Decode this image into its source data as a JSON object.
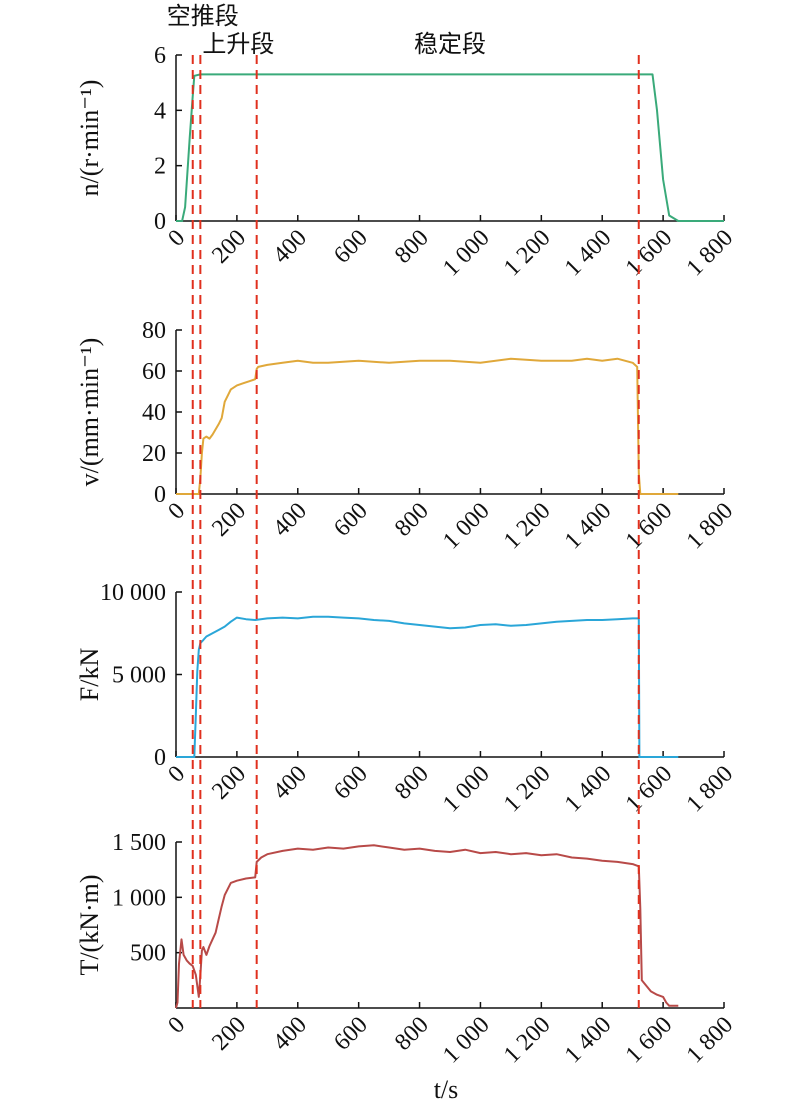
{
  "chart_data": [
    {
      "type": "line",
      "ylabel": "n/(r·min⁻¹)",
      "ylim": [
        0,
        6
      ],
      "yticks": [
        {
          "v": 0,
          "label": "0"
        },
        {
          "v": 2,
          "label": "2"
        },
        {
          "v": 4,
          "label": "4"
        },
        {
          "v": 6,
          "label": "6"
        }
      ],
      "color": "#3aaa7a",
      "series": [
        {
          "x": [
            0,
            10,
            20,
            30,
            45,
            55,
            60,
            80,
            200,
            400,
            800,
            1200,
            1500,
            1560,
            1565,
            1580,
            1600,
            1620,
            1650,
            1800
          ],
          "y": [
            0,
            0,
            0,
            0.5,
            3.0,
            4.5,
            5.25,
            5.3,
            5.3,
            5.3,
            5.3,
            5.3,
            5.3,
            5.3,
            5.3,
            4.0,
            1.5,
            0.2,
            0,
            0
          ]
        }
      ]
    },
    {
      "type": "line",
      "ylabel": "v/(mm·min⁻¹)",
      "ylim": [
        0,
        80
      ],
      "yticks": [
        {
          "v": 0,
          "label": "0"
        },
        {
          "v": 20,
          "label": "20"
        },
        {
          "v": 40,
          "label": "40"
        },
        {
          "v": 60,
          "label": "60"
        },
        {
          "v": 80,
          "label": "80"
        }
      ],
      "color": "#e0a83a",
      "series": [
        {
          "x": [
            0,
            60,
            75,
            80,
            85,
            90,
            100,
            110,
            120,
            140,
            150,
            160,
            170,
            180,
            200,
            220,
            240,
            260,
            265,
            270,
            300,
            350,
            400,
            450,
            500,
            600,
            700,
            800,
            900,
            1000,
            1100,
            1200,
            1300,
            1350,
            1400,
            1450,
            1500,
            1515,
            1520,
            1525,
            1650
          ],
          "y": [
            0,
            0,
            0,
            8,
            20,
            27,
            28,
            27,
            29,
            34,
            37,
            45,
            48,
            51,
            53,
            54,
            55,
            56,
            61,
            62,
            63,
            64,
            65,
            64,
            64,
            65,
            64,
            65,
            65,
            64,
            66,
            65,
            65,
            66,
            65,
            66,
            64,
            62,
            10,
            0,
            0
          ]
        }
      ]
    },
    {
      "type": "line",
      "ylabel": "F/kN",
      "ylim": [
        0,
        10000
      ],
      "yticks": [
        {
          "v": 0,
          "label": "0"
        },
        {
          "v": 5000,
          "label": "5 000"
        },
        {
          "v": 10000,
          "label": "10 000"
        }
      ],
      "color": "#2aa6d8",
      "series": [
        {
          "x": [
            0,
            55,
            60,
            65,
            70,
            75,
            80,
            90,
            100,
            120,
            140,
            160,
            180,
            200,
            230,
            260,
            300,
            350,
            400,
            450,
            500,
            550,
            600,
            650,
            700,
            750,
            800,
            850,
            900,
            950,
            1000,
            1050,
            1100,
            1150,
            1200,
            1250,
            1300,
            1350,
            1400,
            1450,
            1500,
            1520,
            1522,
            1650
          ],
          "y": [
            0,
            0,
            0,
            2500,
            5200,
            6500,
            6900,
            7100,
            7300,
            7500,
            7700,
            7900,
            8200,
            8450,
            8350,
            8300,
            8400,
            8450,
            8400,
            8500,
            8500,
            8450,
            8400,
            8300,
            8250,
            8100,
            8000,
            7900,
            7800,
            7850,
            8000,
            8050,
            7950,
            8000,
            8100,
            8200,
            8250,
            8300,
            8300,
            8350,
            8400,
            8400,
            0,
            0
          ]
        }
      ]
    },
    {
      "type": "line",
      "xlabel": "t/s",
      "ylabel": "T/(kN·m)",
      "ylim": [
        0,
        1500
      ],
      "yticks": [
        {
          "v": 500,
          "label": "500"
        },
        {
          "v": 1000,
          "label": "1 000"
        },
        {
          "v": 1500,
          "label": "1 500"
        }
      ],
      "color": "#b84a48",
      "series": [
        {
          "x": [
            0,
            5,
            10,
            18,
            25,
            35,
            45,
            55,
            65,
            75,
            80,
            85,
            90,
            100,
            110,
            120,
            130,
            140,
            150,
            160,
            180,
            200,
            230,
            260,
            265,
            280,
            300,
            350,
            400,
            450,
            500,
            550,
            600,
            650,
            700,
            750,
            800,
            850,
            900,
            950,
            1000,
            1050,
            1100,
            1150,
            1200,
            1250,
            1300,
            1350,
            1400,
            1450,
            1500,
            1520,
            1525,
            1530,
            1560,
            1580,
            1600,
            1610,
            1620,
            1650
          ],
          "y": [
            0,
            50,
            400,
            620,
            480,
            430,
            400,
            380,
            300,
            100,
            300,
            520,
            550,
            480,
            560,
            620,
            680,
            800,
            920,
            1020,
            1130,
            1150,
            1170,
            1180,
            1320,
            1360,
            1390,
            1420,
            1440,
            1430,
            1450,
            1440,
            1460,
            1470,
            1450,
            1430,
            1440,
            1420,
            1410,
            1430,
            1400,
            1410,
            1390,
            1400,
            1380,
            1390,
            1360,
            1350,
            1330,
            1320,
            1300,
            1280,
            900,
            250,
            150,
            120,
            100,
            50,
            20,
            20
          ]
        }
      ]
    }
  ],
  "x_axis": {
    "xlim": [
      0,
      1800
    ],
    "ticks": [
      {
        "v": 0,
        "label": "0"
      },
      {
        "v": 200,
        "label": "200"
      },
      {
        "v": 400,
        "label": "400"
      },
      {
        "v": 600,
        "label": "600"
      },
      {
        "v": 800,
        "label": "800"
      },
      {
        "v": 1000,
        "label": "1 000"
      },
      {
        "v": 1200,
        "label": "1 200"
      },
      {
        "v": 1400,
        "label": "1 400"
      },
      {
        "v": 1600,
        "label": "1 600"
      },
      {
        "v": 1800,
        "label": "1 800"
      }
    ],
    "xlabel": "t/s"
  },
  "phase_lines": [
    55,
    80,
    265,
    1520
  ],
  "phase_labels": [
    {
      "text": "空推段",
      "x": 55,
      "row": 0
    },
    {
      "text": "上升段",
      "x": 80,
      "row": 1
    },
    {
      "text": "稳定段",
      "x": 900,
      "row": 1
    }
  ],
  "colors": {
    "phase_line": "#e0301e",
    "axis": "#111111"
  }
}
